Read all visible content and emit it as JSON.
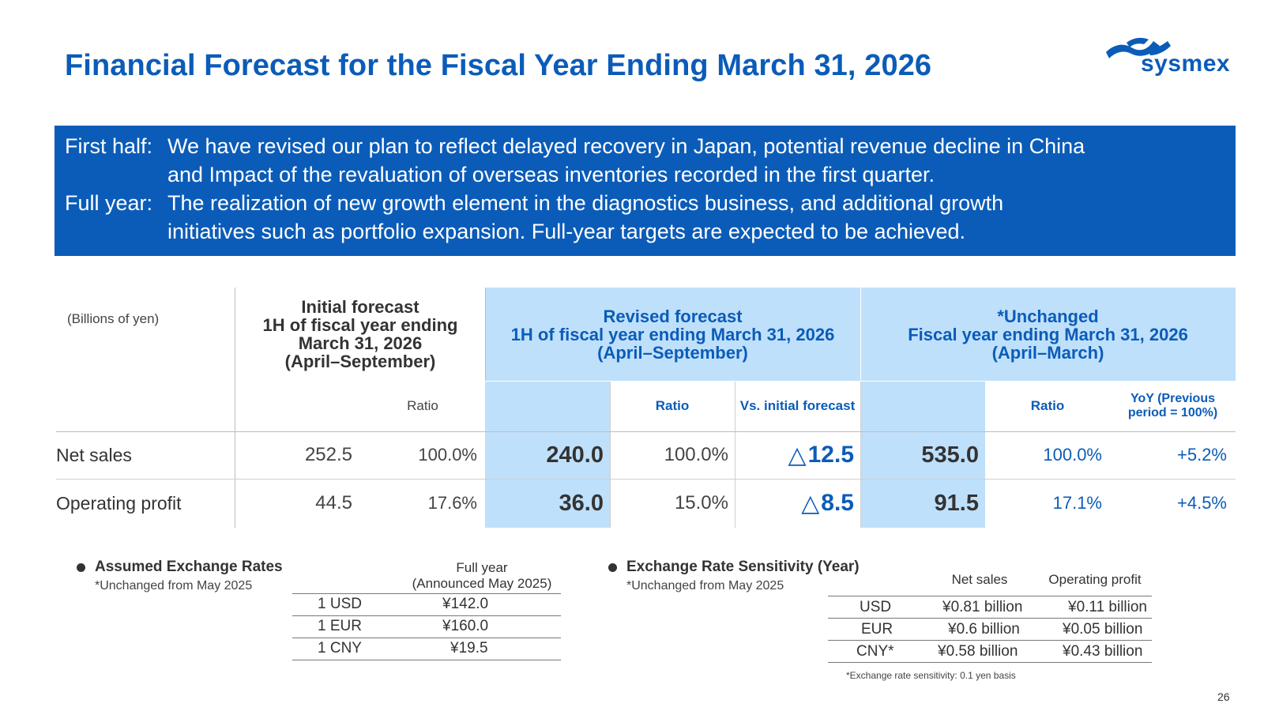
{
  "title": "Financial Forecast for the Fiscal Year Ending March 31, 2026",
  "logo": {
    "text": "sysmex",
    "brand_color": "#0b5cb8"
  },
  "summary": {
    "first_half_label": "First half:",
    "first_half_line1": "We have revised our plan to reflect delayed recovery in Japan, potential revenue decline in China",
    "first_half_line2": "and Impact of the revaluation of overseas inventories recorded in the first quarter.",
    "full_year_label": "Full year:",
    "full_year_line1": "The realization of new growth element in the diagnostics business, and additional growth",
    "full_year_line2": "initiatives such as portfolio expansion. Full-year targets are expected to be achieved."
  },
  "table": {
    "unit": "(Billions of yen)",
    "initial": {
      "line1": "Initial forecast",
      "line2": "1H of fiscal year ending",
      "line3": "March 31, 2026",
      "line4": "(April–September)",
      "ratio_label": "Ratio"
    },
    "revised": {
      "line1": "Revised forecast",
      "line2": "1H of fiscal year ending March 31, 2026",
      "line3": "(April–September)",
      "ratio_label": "Ratio",
      "vs_label": "Vs. initial forecast"
    },
    "fullyear": {
      "line1": "*Unchanged",
      "line2": "Fiscal year ending March 31, 2026",
      "line3": "(April–March)",
      "ratio_label": "Ratio",
      "yoy_line1": "YoY (Previous",
      "yoy_line2": "period = 100%)"
    },
    "rows": [
      {
        "label": "Net sales",
        "initial": "252.5",
        "initial_ratio": "100.0%",
        "revised": "240.0",
        "revised_ratio": "100.0%",
        "delta_symbol": "△",
        "delta": "12.5",
        "full": "535.0",
        "full_ratio": "100.0%",
        "yoy": "+5.2%"
      },
      {
        "label": "Operating profit",
        "initial": "44.5",
        "initial_ratio": "17.6%",
        "revised": "36.0",
        "revised_ratio": "15.0%",
        "delta_symbol": "△",
        "delta": "8.5",
        "full": "91.5",
        "full_ratio": "17.1%",
        "yoy": "+4.5%"
      }
    ]
  },
  "exchange_rates": {
    "title": "Assumed Exchange Rates",
    "note": "*Unchanged from May 2025",
    "col_header_line1": "Full year",
    "col_header_line2": "(Announced May 2025)",
    "rows": [
      {
        "currency": "1 USD",
        "rate": "¥142.0"
      },
      {
        "currency": "1 EUR",
        "rate": "¥160.0"
      },
      {
        "currency": "1 CNY",
        "rate": "¥19.5"
      }
    ]
  },
  "sensitivity": {
    "title": "Exchange Rate Sensitivity  (Year)",
    "note": "*Unchanged from May 2025",
    "col_net_sales": "Net sales",
    "col_operating_profit": "Operating profit",
    "rows": [
      {
        "currency": "USD",
        "net_sales": "¥0.81 billion",
        "operating_profit": "¥0.11 billion"
      },
      {
        "currency": "EUR",
        "net_sales": "¥0.6 billion",
        "operating_profit": "¥0.05 billion"
      },
      {
        "currency": "CNY*",
        "net_sales": "¥0.58 billion",
        "operating_profit": "¥0.43 billion"
      }
    ],
    "footnote": "*Exchange rate sensitivity: 0.1 yen basis"
  },
  "page_number": "26"
}
